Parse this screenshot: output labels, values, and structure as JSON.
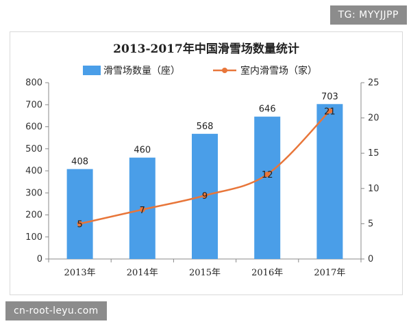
{
  "tag_top": "TG: MYYJJPP",
  "tag_bottom": "cn-root-leyu.com",
  "colors": {
    "bar": "#4a9ee8",
    "line": "#e8763a",
    "axis": "#888888"
  },
  "chart_data": {
    "type": "bar",
    "title": "2013-2017年中国滑雪场数量统计",
    "categories": [
      "2013年",
      "2014年",
      "2015年",
      "2016年",
      "2017年"
    ],
    "series": [
      {
        "name": "滑雪场数量（座）",
        "type": "bar",
        "axis": "left",
        "values": [
          408,
          460,
          568,
          646,
          703
        ]
      },
      {
        "name": "室内滑雪场（家）",
        "type": "line",
        "axis": "right",
        "values": [
          5,
          7,
          9,
          12,
          21
        ]
      }
    ],
    "ylim_left": [
      0,
      800
    ],
    "yticks_left": [
      0,
      100,
      200,
      300,
      400,
      500,
      600,
      700,
      800
    ],
    "ylim_right": [
      0,
      25
    ],
    "yticks_right": [
      0,
      5,
      10,
      15,
      20,
      25
    ],
    "legend_position": "top",
    "grid": false
  }
}
